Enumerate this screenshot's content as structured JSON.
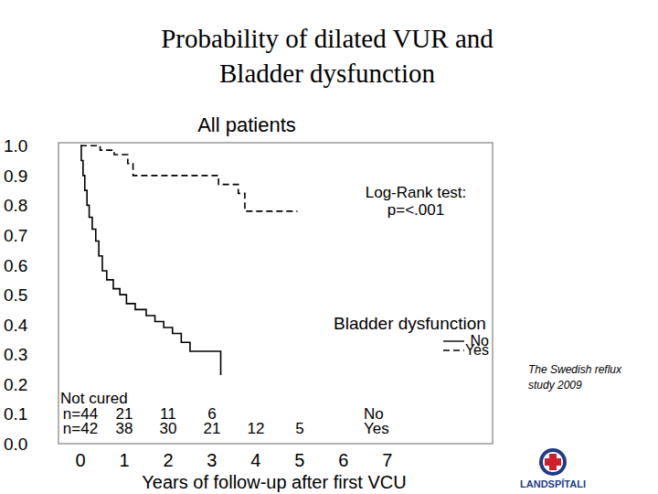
{
  "title_lines": [
    "Probability of dilated VUR and",
    "Bladder dysfunction"
  ],
  "note_lines": [
    "The Swedish reflux",
    "study 2009"
  ],
  "logo_text": "LANDSPÍTALI",
  "chart_data": {
    "type": "line",
    "title": "All patients",
    "x_label": "Years of follow-up after first VCU",
    "xlim": [
      -0.5,
      9.4
    ],
    "xticks": [
      0,
      1,
      2,
      3,
      4,
      5,
      6,
      7
    ],
    "ylim": [
      0,
      1.01
    ],
    "yticks": [
      {
        "value": 0,
        "label": "0.0"
      },
      0.1,
      0.2,
      0.3,
      0.4,
      0.5,
      0.6,
      0.7,
      0.8,
      0.9,
      {
        "value": 1,
        "label": "1.0"
      }
    ],
    "grid": false,
    "legend": "right",
    "legend_title": "Bladder dysfunction",
    "annotation_lines": [
      "Log-Rank test:",
      "p=<.001"
    ],
    "series": [
      {
        "name": "No",
        "color": "#000000",
        "line_style": "solid",
        "x": [
          0,
          0.02,
          0.06,
          0.1,
          0.15,
          0.2,
          0.27,
          0.35,
          0.42,
          0.5,
          0.6,
          0.75,
          0.9,
          1.05,
          1.25,
          1.5,
          1.7,
          1.9,
          2.1,
          2.3,
          2.5,
          3.2
        ],
        "values": [
          1,
          0.95,
          0.9,
          0.85,
          0.8,
          0.76,
          0.72,
          0.68,
          0.63,
          0.58,
          0.55,
          0.52,
          0.5,
          0.47,
          0.45,
          0.43,
          0.41,
          0.39,
          0.37,
          0.34,
          0.31,
          0.23
        ]
      },
      {
        "name": "Yes",
        "color": "#000000",
        "line_style": "dashed",
        "x": [
          0,
          0.45,
          0.77,
          1.08,
          1.2,
          3.15,
          3.6,
          3.75,
          4.95
        ],
        "values": [
          1,
          0.985,
          0.97,
          0.94,
          0.9,
          0.87,
          0.84,
          0.78,
          0.78
        ]
      }
    ],
    "at_risk": {
      "title": "Not cured",
      "rows": [
        {
          "name": "No",
          "x": [
            0,
            1,
            2,
            3
          ],
          "values": [
            44,
            21,
            11,
            6
          ],
          "value_labels": [
            "n=44",
            "21",
            "11",
            "6"
          ]
        },
        {
          "name": "Yes",
          "x": [
            0,
            1,
            2,
            3,
            4,
            5
          ],
          "values": [
            42,
            38,
            30,
            21,
            12,
            5
          ],
          "value_labels": [
            "n=42",
            "38",
            "30",
            "21",
            "12",
            "5"
          ]
        }
      ]
    }
  }
}
